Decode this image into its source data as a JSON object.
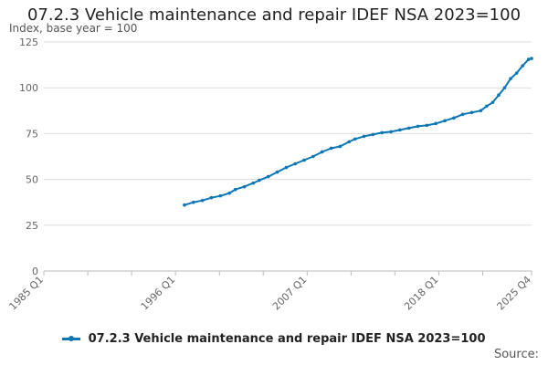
{
  "chart_data": {
    "type": "line",
    "title": "07.2.3 Vehicle maintenance and repair IDEF NSA 2023=100",
    "ylabel": "Index, base year = 100",
    "xlabel": "",
    "ylim": [
      0,
      125
    ],
    "yticks": [
      0,
      25,
      50,
      75,
      100,
      125
    ],
    "xlim": [
      1985,
      2025.75
    ],
    "xticks": [
      {
        "label": "1985 Q1",
        "x": 1985.0
      },
      {
        "label": "1996 Q1",
        "x": 1996.0
      },
      {
        "label": "2007 Q1",
        "x": 2007.0
      },
      {
        "label": "2018 Q1",
        "x": 2018.0
      },
      {
        "label": "2025 Q4",
        "x": 2025.75
      }
    ],
    "minor_ticks": [
      1985,
      1988.67,
      1992.33,
      1996,
      1999.67,
      2003.33,
      2007,
      2010.67,
      2014.33,
      2018,
      2021.67,
      2025.75
    ],
    "grid": true,
    "legend_position": "bottom",
    "color": "#0b76b5",
    "series": [
      {
        "name": "07.2.3 Vehicle maintenance and repair IDEF NSA 2023=100",
        "points": [
          [
            1996.75,
            36.0
          ],
          [
            1997.5,
            37.5
          ],
          [
            1998.25,
            38.5
          ],
          [
            1999.0,
            40.0
          ],
          [
            1999.75,
            41.0
          ],
          [
            2000.5,
            42.5
          ],
          [
            2001.0,
            44.5
          ],
          [
            2001.75,
            46.0
          ],
          [
            2002.5,
            48.0
          ],
          [
            2003.0,
            49.5
          ],
          [
            2003.75,
            51.5
          ],
          [
            2004.5,
            54.0
          ],
          [
            2005.25,
            56.5
          ],
          [
            2006.0,
            58.5
          ],
          [
            2006.75,
            60.5
          ],
          [
            2007.5,
            62.5
          ],
          [
            2008.25,
            65.0
          ],
          [
            2009.0,
            67.0
          ],
          [
            2009.75,
            68.0
          ],
          [
            2010.5,
            70.5
          ],
          [
            2011.0,
            72.0
          ],
          [
            2011.75,
            73.5
          ],
          [
            2012.5,
            74.5
          ],
          [
            2013.25,
            75.5
          ],
          [
            2014.0,
            76.0
          ],
          [
            2014.75,
            77.0
          ],
          [
            2015.5,
            78.0
          ],
          [
            2016.25,
            79.0
          ],
          [
            2017.0,
            79.5
          ],
          [
            2017.75,
            80.5
          ],
          [
            2018.5,
            82.0
          ],
          [
            2019.25,
            83.5
          ],
          [
            2020.0,
            85.5
          ],
          [
            2020.75,
            86.5
          ],
          [
            2021.5,
            87.5
          ],
          [
            2022.0,
            90.0
          ],
          [
            2022.5,
            92.0
          ],
          [
            2023.0,
            96.0
          ],
          [
            2023.5,
            100.0
          ],
          [
            2024.0,
            105.0
          ],
          [
            2024.5,
            108.0
          ],
          [
            2025.0,
            112.0
          ],
          [
            2025.5,
            115.5
          ],
          [
            2025.75,
            116.0
          ]
        ]
      }
    ]
  },
  "source_label": "Source:"
}
